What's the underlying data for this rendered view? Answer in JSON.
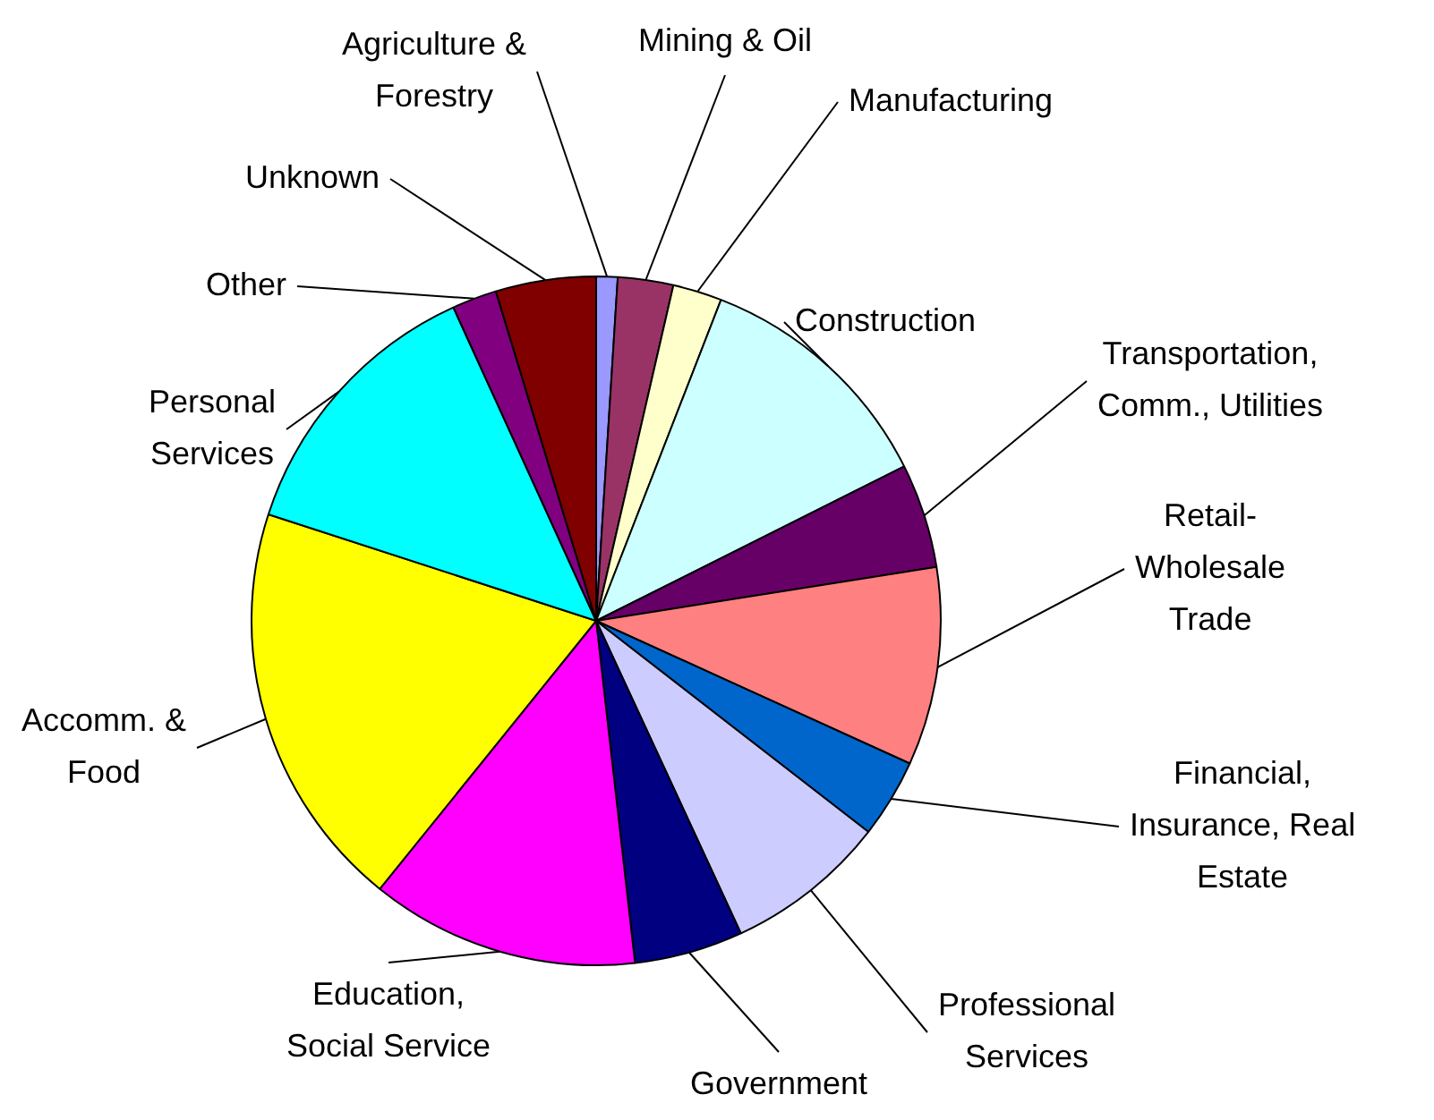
{
  "chart_data": {
    "type": "pie",
    "categories": [
      "Agriculture & Forestry",
      "Mining & Oil",
      "Manufacturing",
      "Construction",
      "Transportation, Comm., Utilities",
      "Retail-Wholesale Trade",
      "Financial, Insurance, Real Estate",
      "Professional Services",
      "Government",
      "Education, Social Service",
      "Accomm. & Food",
      "Personal Services",
      "Other",
      "Unknown"
    ],
    "values": [
      1.0,
      2.6,
      2.3,
      11.7,
      4.9,
      9.3,
      3.7,
      7.6,
      5.1,
      12.6,
      19.2,
      13.2,
      2.1,
      4.7
    ],
    "colors": [
      "#9999ff",
      "#993366",
      "#ffffcc",
      "#ccffff",
      "#660066",
      "#ff8080",
      "#0066cc",
      "#ccccff",
      "#000080",
      "#ff00ff",
      "#ffff00",
      "#00ffff",
      "#800080",
      "#800000"
    ],
    "legend": false
  }
}
